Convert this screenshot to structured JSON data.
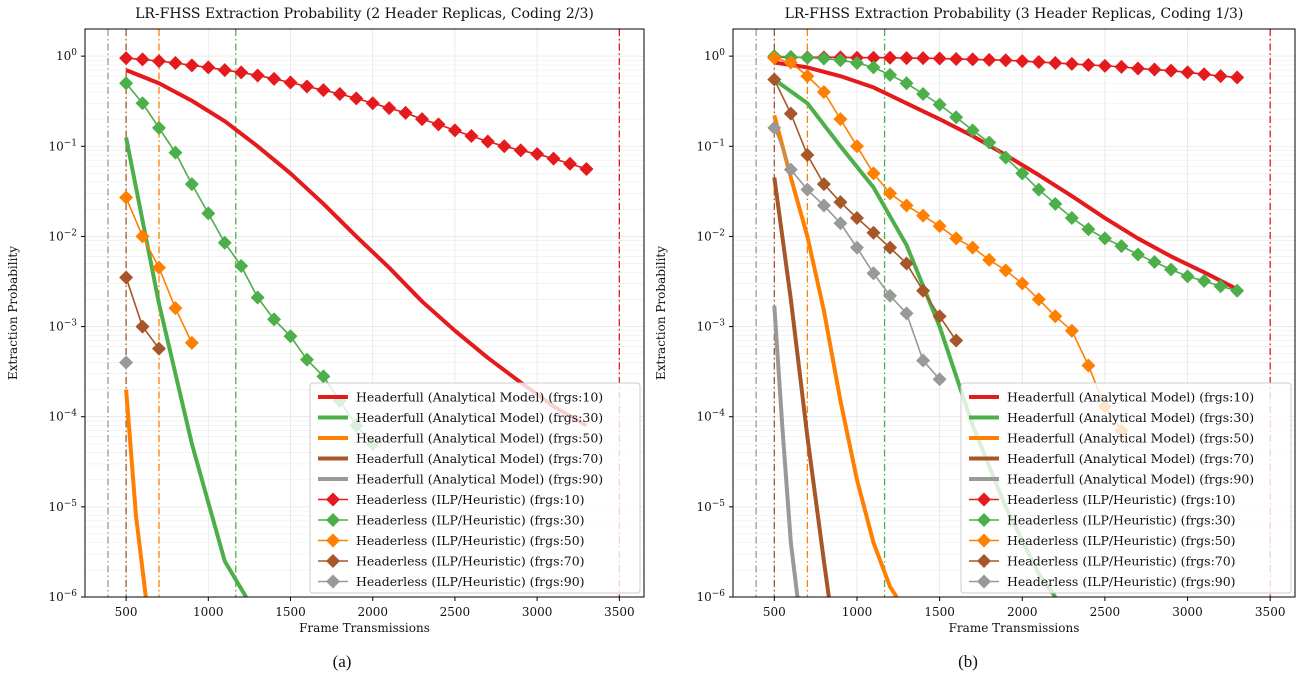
{
  "captions": [
    "(a)",
    "(b)"
  ],
  "chart_data": [
    {
      "type": "line",
      "title": "LR-FHSS Extraction Probability (2 Header Replicas, Coding 2/3)",
      "xlabel": "Frame Transmissions",
      "ylabel": "Extraction Probability",
      "xlim": [
        250,
        3650
      ],
      "ylim": [
        1e-06,
        2
      ],
      "yscale": "log",
      "grid": true,
      "legend_position": "lower-right",
      "xticks": [
        500,
        1000,
        1500,
        2000,
        2500,
        3000,
        3500
      ],
      "yticks": [
        {
          "value": 1,
          "base": "10",
          "exp": "0"
        },
        {
          "value": 0.1,
          "base": "10",
          "exp": "−1"
        },
        {
          "value": 0.01,
          "base": "10",
          "exp": "−2"
        },
        {
          "value": 0.001,
          "base": "10",
          "exp": "−3"
        },
        {
          "value": 0.0001,
          "base": "10",
          "exp": "−4"
        },
        {
          "value": 1e-05,
          "base": "10",
          "exp": "−5"
        },
        {
          "value": 1e-06,
          "base": "10",
          "exp": "−6"
        }
      ],
      "vlines": [
        {
          "x": 390,
          "color": "#999999"
        },
        {
          "x": 500,
          "color": "#a65628"
        },
        {
          "x": 700,
          "color": "#ff7f00"
        },
        {
          "x": 1167,
          "color": "#4daf4a"
        },
        {
          "x": 3500,
          "color": "#e41a1c"
        }
      ],
      "series": [
        {
          "name": "Headerfull (Analytical Model) (frgs:10)",
          "color": "#e41a1c",
          "kind": "line",
          "x": [
            500,
            700,
            900,
            1100,
            1300,
            1500,
            1700,
            1900,
            2100,
            2300,
            2500,
            2700,
            2900,
            3100,
            3300
          ],
          "y": [
            0.7,
            0.5,
            0.32,
            0.19,
            0.1,
            0.05,
            0.023,
            0.01,
            0.0045,
            0.0019,
            0.0009,
            0.00045,
            0.00024,
            0.00013,
            8e-05
          ]
        },
        {
          "name": "Headerfull (Analytical Model) (frgs:30)",
          "color": "#4daf4a",
          "kind": "line",
          "x": [
            500,
            700,
            900,
            1100,
            1230
          ],
          "y": [
            0.125,
            0.0018,
            5e-05,
            2.5e-06,
            1e-06
          ]
        },
        {
          "name": "Headerfull (Analytical Model) (frgs:50)",
          "color": "#ff7f00",
          "kind": "line",
          "x": [
            500,
            560,
            620
          ],
          "y": [
            0.0002,
            8e-06,
            1e-06
          ]
        },
        {
          "name": "Headerfull (Analytical Model) (frgs:70)",
          "color": "#a65628",
          "kind": "line",
          "x": [],
          "y": []
        },
        {
          "name": "Headerfull (Analytical Model) (frgs:90)",
          "color": "#999999",
          "kind": "line",
          "x": [],
          "y": []
        },
        {
          "name": "Headerless (ILP/Heuristic) (frgs:10)",
          "color": "#e41a1c",
          "kind": "marker",
          "x": [
            500,
            600,
            700,
            800,
            900,
            1000,
            1100,
            1200,
            1300,
            1400,
            1500,
            1600,
            1700,
            1800,
            1900,
            2000,
            2100,
            2200,
            2300,
            2400,
            2500,
            2600,
            2700,
            2800,
            2900,
            3000,
            3100,
            3200,
            3300
          ],
          "y": [
            0.95,
            0.92,
            0.88,
            0.84,
            0.79,
            0.75,
            0.7,
            0.66,
            0.61,
            0.56,
            0.51,
            0.46,
            0.42,
            0.38,
            0.34,
            0.3,
            0.265,
            0.235,
            0.2,
            0.175,
            0.15,
            0.13,
            0.113,
            0.1,
            0.09,
            0.082,
            0.073,
            0.064,
            0.056
          ]
        },
        {
          "name": "Headerless (ILP/Heuristic) (frgs:30)",
          "color": "#4daf4a",
          "kind": "marker",
          "x": [
            500,
            600,
            700,
            800,
            900,
            1000,
            1100,
            1200,
            1300,
            1400,
            1500,
            1600,
            1700,
            1800,
            1900,
            2000
          ],
          "y": [
            0.5,
            0.3,
            0.16,
            0.085,
            0.038,
            0.018,
            0.0085,
            0.0047,
            0.0021,
            0.0012,
            0.00078,
            0.00043,
            0.00028,
            0.00015,
            8e-05,
            5e-05
          ]
        },
        {
          "name": "Headerless (ILP/Heuristic) (frgs:50)",
          "color": "#ff7f00",
          "kind": "marker",
          "x": [
            500,
            600,
            700,
            800,
            900
          ],
          "y": [
            0.027,
            0.01,
            0.0045,
            0.0016,
            0.00066
          ]
        },
        {
          "name": "Headerless (ILP/Heuristic) (frgs:70)",
          "color": "#a65628",
          "kind": "marker",
          "x": [
            500,
            600,
            700
          ],
          "y": [
            0.0035,
            0.001,
            0.00057
          ]
        },
        {
          "name": "Headerless (ILP/Heuristic) (frgs:90)",
          "color": "#999999",
          "kind": "marker",
          "x": [
            500
          ],
          "y": [
            0.0004
          ]
        }
      ]
    },
    {
      "type": "line",
      "title": "LR-FHSS Extraction Probability (3 Header Replicas, Coding 1/3)",
      "xlabel": "Frame Transmissions",
      "ylabel": "Extraction Probability",
      "xlim": [
        250,
        3650
      ],
      "ylim": [
        1e-06,
        2
      ],
      "yscale": "log",
      "grid": true,
      "legend_position": "lower-right",
      "xticks": [
        500,
        1000,
        1500,
        2000,
        2500,
        3000,
        3500
      ],
      "yticks": [
        {
          "value": 1,
          "base": "10",
          "exp": "0"
        },
        {
          "value": 0.1,
          "base": "10",
          "exp": "−1"
        },
        {
          "value": 0.01,
          "base": "10",
          "exp": "−2"
        },
        {
          "value": 0.001,
          "base": "10",
          "exp": "−3"
        },
        {
          "value": 0.0001,
          "base": "10",
          "exp": "−4"
        },
        {
          "value": 1e-05,
          "base": "10",
          "exp": "−5"
        },
        {
          "value": 1e-06,
          "base": "10",
          "exp": "−6"
        }
      ],
      "vlines": [
        {
          "x": 390,
          "color": "#999999"
        },
        {
          "x": 500,
          "color": "#a65628"
        },
        {
          "x": 700,
          "color": "#ff7f00"
        },
        {
          "x": 1167,
          "color": "#4daf4a"
        },
        {
          "x": 3500,
          "color": "#e41a1c"
        }
      ],
      "series": [
        {
          "name": "Headerfull (Analytical Model) (frgs:10)",
          "color": "#e41a1c",
          "kind": "line",
          "x": [
            500,
            700,
            900,
            1100,
            1300,
            1500,
            1700,
            1900,
            2100,
            2300,
            2500,
            2700,
            2900,
            3100,
            3300
          ],
          "y": [
            0.85,
            0.75,
            0.6,
            0.45,
            0.3,
            0.2,
            0.13,
            0.08,
            0.048,
            0.028,
            0.016,
            0.0095,
            0.006,
            0.004,
            0.0026
          ]
        },
        {
          "name": "Headerfull (Analytical Model) (frgs:30)",
          "color": "#4daf4a",
          "kind": "line",
          "x": [
            500,
            700,
            900,
            1100,
            1300,
            1500,
            1700,
            1900,
            2100,
            2200
          ],
          "y": [
            0.55,
            0.3,
            0.1,
            0.035,
            0.008,
            0.001,
            8e-05,
            1e-05,
            1.8e-06,
            1e-06
          ]
        },
        {
          "name": "Headerfull (Analytical Model) (frgs:50)",
          "color": "#ff7f00",
          "kind": "line",
          "x": [
            500,
            600,
            700,
            800,
            900,
            1000,
            1100,
            1200,
            1240
          ],
          "y": [
            0.22,
            0.045,
            0.01,
            0.0015,
            0.00015,
            2e-05,
            4e-06,
            1.3e-06,
            1e-06
          ]
        },
        {
          "name": "Headerfull (Analytical Model) (frgs:70)",
          "color": "#a65628",
          "kind": "line",
          "x": [
            500,
            600,
            700,
            800,
            830
          ],
          "y": [
            0.045,
            0.002,
            6e-05,
            2.5e-06,
            1e-06
          ]
        },
        {
          "name": "Headerfull (Analytical Model) (frgs:90)",
          "color": "#999999",
          "kind": "line",
          "x": [
            500,
            550,
            600,
            640
          ],
          "y": [
            0.0017,
            7e-05,
            4e-06,
            1e-06
          ]
        },
        {
          "name": "Headerless (ILP/Heuristic) (frgs:10)",
          "color": "#e41a1c",
          "kind": "marker",
          "x": [
            500,
            600,
            700,
            800,
            900,
            1000,
            1100,
            1200,
            1300,
            1400,
            1500,
            1600,
            1700,
            1800,
            1900,
            2000,
            2100,
            2200,
            2300,
            2400,
            2500,
            2600,
            2700,
            2800,
            2900,
            3000,
            3100,
            3200,
            3300
          ],
          "y": [
            0.97,
            0.97,
            0.97,
            0.97,
            0.97,
            0.96,
            0.96,
            0.96,
            0.95,
            0.95,
            0.94,
            0.93,
            0.92,
            0.91,
            0.9,
            0.88,
            0.86,
            0.84,
            0.82,
            0.8,
            0.78,
            0.76,
            0.73,
            0.71,
            0.69,
            0.66,
            0.63,
            0.6,
            0.58
          ]
        },
        {
          "name": "Headerless (ILP/Heuristic) (frgs:30)",
          "color": "#4daf4a",
          "kind": "marker",
          "x": [
            500,
            600,
            700,
            800,
            900,
            1000,
            1100,
            1200,
            1300,
            1400,
            1500,
            1600,
            1700,
            1800,
            1900,
            2000,
            2100,
            2200,
            2300,
            2400,
            2500,
            2600,
            2700,
            2800,
            2900,
            3000,
            3100,
            3200,
            3300
          ],
          "y": [
            1,
            0.98,
            0.96,
            0.94,
            0.9,
            0.84,
            0.75,
            0.62,
            0.5,
            0.38,
            0.29,
            0.21,
            0.15,
            0.11,
            0.075,
            0.05,
            0.033,
            0.023,
            0.016,
            0.012,
            0.0095,
            0.0078,
            0.0063,
            0.0052,
            0.0043,
            0.0036,
            0.0032,
            0.0028,
            0.0025
          ]
        },
        {
          "name": "Headerless (ILP/Heuristic) (frgs:50)",
          "color": "#ff7f00",
          "kind": "marker",
          "x": [
            500,
            600,
            700,
            800,
            900,
            1000,
            1100,
            1200,
            1300,
            1400,
            1500,
            1600,
            1700,
            1800,
            1900,
            2000,
            2100,
            2200,
            2300,
            2400,
            2500,
            2600
          ],
          "y": [
            0.95,
            0.85,
            0.6,
            0.4,
            0.2,
            0.1,
            0.05,
            0.03,
            0.022,
            0.017,
            0.013,
            0.0095,
            0.0075,
            0.0055,
            0.0042,
            0.003,
            0.002,
            0.0013,
            0.0009,
            0.00037,
            0.00013,
            7e-05
          ]
        },
        {
          "name": "Headerless (ILP/Heuristic) (frgs:70)",
          "color": "#a65628",
          "kind": "marker",
          "x": [
            500,
            600,
            700,
            800,
            900,
            1000,
            1100,
            1200,
            1300,
            1400,
            1500,
            1600
          ],
          "y": [
            0.55,
            0.23,
            0.08,
            0.038,
            0.024,
            0.016,
            0.011,
            0.0075,
            0.005,
            0.0025,
            0.0013,
            0.0007
          ]
        },
        {
          "name": "Headerless (ILP/Heuristic) (frgs:90)",
          "color": "#999999",
          "kind": "marker",
          "x": [
            500,
            600,
            700,
            800,
            900,
            1000,
            1100,
            1200,
            1300,
            1400,
            1500
          ],
          "y": [
            0.16,
            0.055,
            0.033,
            0.022,
            0.014,
            0.0075,
            0.0039,
            0.0022,
            0.0014,
            0.00042,
            0.00026
          ]
        }
      ]
    }
  ]
}
